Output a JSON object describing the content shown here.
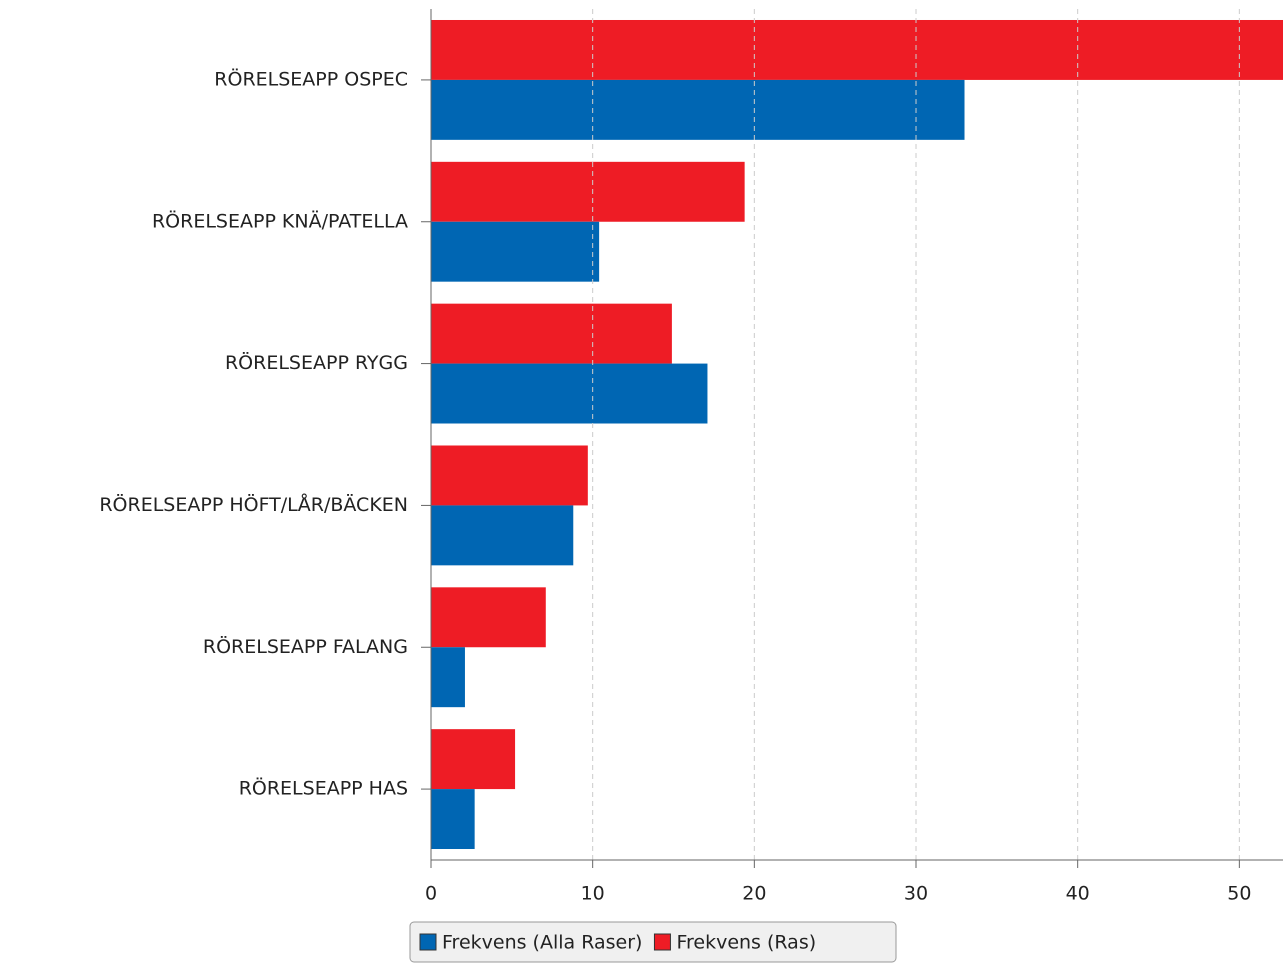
{
  "chart_data": {
    "type": "barh",
    "categories": [
      "RÖRELSEAPP OSPEC",
      "RÖRELSEAPP KNÄ/PATELLA",
      "RÖRELSEAPP RYGG",
      "RÖRELSEAPP HÖFT/LÅR/BÄCKEN",
      "RÖRELSEAPP FALANG",
      "RÖRELSEAPP HAS"
    ],
    "series": [
      {
        "name": "Frekvens (Alla Raser)",
        "color": "#0066b3",
        "values": [
          33.0,
          10.4,
          17.1,
          8.8,
          2.1,
          2.7
        ]
      },
      {
        "name": "Frekvens (Ras)",
        "color": "#ee1c25",
        "values": [
          53,
          19.4,
          14.9,
          9.7,
          7.1,
          5.2
        ]
      }
    ],
    "xlim": [
      0,
      52.7
    ],
    "xticks": [
      0,
      10,
      20,
      30,
      40,
      50
    ],
    "grid": true,
    "legend": "bottom"
  }
}
